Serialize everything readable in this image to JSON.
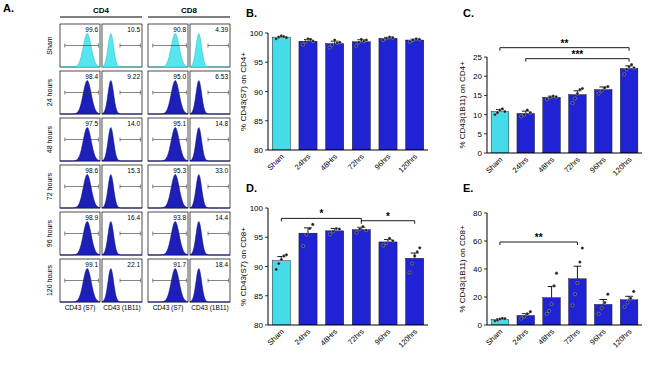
{
  "panel_a": {
    "label": "A.",
    "groups": [
      "CD4",
      "CD8"
    ],
    "x_labels": [
      "CD43 (S7)",
      "CD43 (1B11)",
      "CD43 (S7)",
      "CD43 (1B11)"
    ],
    "rows": [
      {
        "label": "Sham",
        "values": [
          "99.6",
          "10.5",
          "90.8",
          "4.39"
        ]
      },
      {
        "label": "24 hours",
        "values": [
          "98.4",
          "9.22",
          "95.0",
          "6.53"
        ]
      },
      {
        "label": "48 hours",
        "values": [
          "97.5",
          "14.0",
          "95.1",
          "14.8"
        ]
      },
      {
        "label": "72 hours",
        "values": [
          "98.6",
          "15.3",
          "95.3",
          "33.0"
        ]
      },
      {
        "label": "96 hours",
        "values": [
          "98.9",
          "16.4",
          "93.8",
          "14.4"
        ]
      },
      {
        "label": "120 hours",
        "values": [
          "99.1",
          "22.1",
          "91.7",
          "18.4"
        ]
      }
    ]
  },
  "chart_data": [
    {
      "type": "bar",
      "title": "B.",
      "ylabel": "% CD43(S7) on CD4+",
      "categories": [
        "Sham",
        "24hrs",
        "48Hrs",
        "72hrs",
        "96hrs",
        "120hrs"
      ],
      "values": [
        99.3,
        98.6,
        98.2,
        98.5,
        99.1,
        98.8
      ],
      "errors": [
        0.1,
        0.3,
        0.4,
        0.35,
        0.15,
        0.15
      ],
      "points": [
        [
          99.0,
          99.3,
          99.5,
          99.4,
          99.2
        ],
        [
          98.0,
          98.5,
          99.0,
          98.9,
          98.6
        ],
        [
          97.5,
          98.0,
          98.8,
          98.3,
          98.4
        ],
        [
          97.8,
          98.4,
          98.9,
          98.6,
          98.8
        ],
        [
          98.8,
          99.1,
          99.3,
          99.2
        ],
        [
          98.5,
          98.8,
          99.0,
          98.9
        ]
      ],
      "colors": [
        "#45dbe9",
        "#1f23d4",
        "#1f23d4",
        "#1f23d4",
        "#1f23d4",
        "#1f23d4"
      ],
      "ylim": [
        80,
        100
      ],
      "yticks": [
        80,
        85,
        90,
        95,
        100
      ],
      "annotations": []
    },
    {
      "type": "bar",
      "title": "C.",
      "ylabel": "% CD43(1B11) on CD4+",
      "categories": [
        "Sham",
        "24hrs",
        "48hrs",
        "72hrs",
        "96hrs",
        "120hrs"
      ],
      "values": [
        10.8,
        10.3,
        14.5,
        15.2,
        16.5,
        22.0
      ],
      "errors": [
        0.5,
        0.6,
        0.3,
        1.0,
        0.7,
        0.7
      ],
      "points": [
        [
          10.0,
          10.5,
          11.2,
          11.5,
          10.8
        ],
        [
          9.5,
          10.0,
          11.2,
          10.5
        ],
        [
          14.0,
          14.5,
          14.8,
          14.6
        ],
        [
          13.0,
          14.2,
          15.5,
          16.5,
          16.8
        ],
        [
          15.5,
          16.2,
          17.0,
          17.3
        ],
        [
          20.5,
          21.8,
          22.5,
          23.0,
          22.2
        ]
      ],
      "colors": [
        "#45dbe9",
        "#1f23d4",
        "#1f23d4",
        "#1f23d4",
        "#1f23d4",
        "#1f23d4"
      ],
      "ylim": [
        0,
        25
      ],
      "yticks": [
        0,
        5,
        10,
        15,
        20,
        25
      ],
      "annotations": [
        {
          "text": "***",
          "from": "24hrs",
          "to": "120hrs"
        },
        {
          "text": "**",
          "from": "Sham",
          "to": "120hrs"
        }
      ]
    },
    {
      "type": "bar",
      "title": "D.",
      "ylabel": "% CD43(S7) on CD8+",
      "categories": [
        "Sham",
        "24hrs",
        "48Hrs",
        "72hrs",
        "96hrs",
        "120hrs"
      ],
      "values": [
        91.0,
        95.7,
        96.1,
        96.3,
        94.2,
        91.4
      ],
      "errors": [
        0.7,
        0.9,
        0.4,
        0.4,
        0.4,
        0.9
      ],
      "points": [
        [
          89.5,
          90.5,
          91.2,
          91.8,
          92.0
        ],
        [
          93.5,
          95.5,
          96.5,
          97.2
        ],
        [
          95.5,
          96.0,
          96.5,
          96.4
        ],
        [
          95.8,
          96.4,
          96.8,
          96.2
        ],
        [
          93.6,
          94.0,
          94.8,
          94.4
        ],
        [
          89.0,
          90.5,
          91.8,
          92.5,
          93.2
        ]
      ],
      "colors": [
        "#45dbe9",
        "#1f23d4",
        "#1f23d4",
        "#1f23d4",
        "#1f23d4",
        "#1f23d4"
      ],
      "ylim": [
        80,
        100
      ],
      "yticks": [
        80,
        85,
        90,
        95,
        100
      ],
      "annotations": [
        {
          "text": "*",
          "from": "Sham",
          "to": "72hrs"
        },
        {
          "text": "*",
          "from": "72hrs",
          "to": "120hrs"
        }
      ]
    },
    {
      "type": "bar",
      "title": "E.",
      "ylabel": "% CD43(1B11) on CD8+",
      "categories": [
        "Sham",
        "24hrs",
        "48hrs",
        "72hrs",
        "96hrs",
        "120hrs"
      ],
      "values": [
        4.0,
        6.8,
        19.5,
        33.0,
        14.7,
        18.0
      ],
      "errors": [
        0.5,
        1.3,
        8.0,
        9.0,
        3.5,
        2.5
      ],
      "points": [
        [
          3.0,
          3.5,
          4.2,
          4.8,
          4.5
        ],
        [
          4.5,
          6.0,
          8.0,
          9.5
        ],
        [
          8.0,
          10.0,
          15.0,
          28.0,
          37.0
        ],
        [
          14.0,
          22.0,
          30.0,
          45.0,
          55.0
        ],
        [
          8.0,
          12.0,
          16.0,
          22.0
        ],
        [
          13.0,
          16.0,
          19.0,
          24.0
        ]
      ],
      "colors": [
        "#45dbe9",
        "#1f23d4",
        "#1f23d4",
        "#1f23d4",
        "#1f23d4",
        "#1f23d4"
      ],
      "ylim": [
        0,
        80
      ],
      "yticks": [
        0,
        20,
        40,
        60,
        80
      ],
      "annotations": [
        {
          "text": "**",
          "from": "Sham",
          "to": "72hrs"
        }
      ]
    }
  ]
}
